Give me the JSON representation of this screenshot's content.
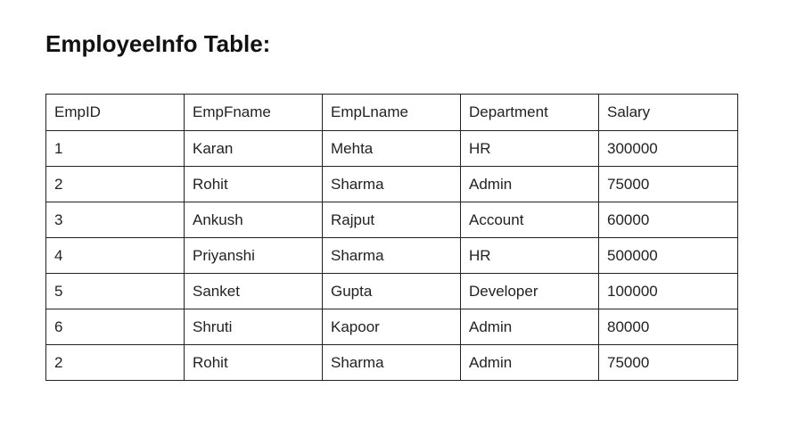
{
  "title": "EmployeeInfo Table:",
  "table": {
    "columns": [
      "EmpID",
      "EmpFname",
      "EmpLname",
      "Department",
      "Salary"
    ],
    "rows": [
      [
        "1",
        "Karan",
        "Mehta",
        "HR",
        "300000"
      ],
      [
        "2",
        "Rohit",
        "Sharma",
        "Admin",
        "75000"
      ],
      [
        "3",
        "Ankush",
        "Rajput",
        "Account",
        "60000"
      ],
      [
        "4",
        "Priyanshi",
        "Sharma",
        "HR",
        "500000"
      ],
      [
        "5",
        "Sanket",
        "Gupta",
        "Developer",
        "100000"
      ],
      [
        "6",
        "Shruti",
        "Kapoor",
        "Admin",
        "80000"
      ],
      [
        "2",
        "Rohit",
        "Sharma",
        "Admin",
        "75000"
      ]
    ]
  }
}
